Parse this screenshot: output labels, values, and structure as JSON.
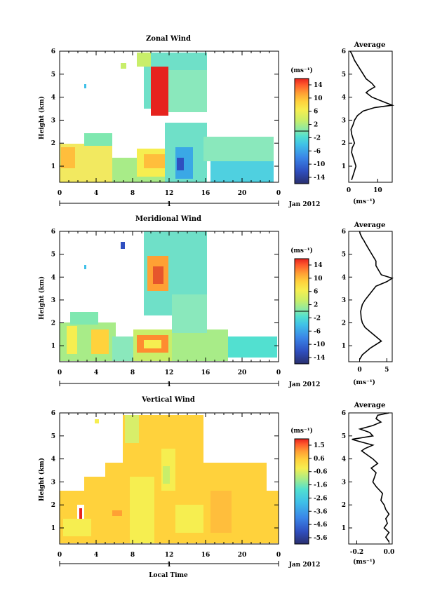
{
  "chart_data": [
    {
      "type": "heatmap",
      "title": "Zonal Wind",
      "ylabel": "Height (km)",
      "xlabel": "",
      "x_ticks": [
        "0",
        "4",
        "8",
        "12",
        "16",
        "20",
        "0"
      ],
      "y_ticks": [
        "1",
        "2",
        "3",
        "4",
        "5",
        "6"
      ],
      "xlim": [
        0,
        24
      ],
      "ylim": [
        0.3,
        6
      ],
      "date_label": "Jan 2012",
      "day_label": "1",
      "colorbar": {
        "unit": "(ms⁻¹)",
        "ticks": [
          "14",
          "10",
          "6",
          "2",
          "-2",
          "-6",
          "-10",
          "-14"
        ],
        "range": [
          -16,
          16
        ]
      },
      "profile": {
        "title": "Average",
        "xlabel": "(ms⁻¹)",
        "x_ticks": [
          "0",
          "10"
        ],
        "xlim": [
          0,
          15
        ],
        "x": [
          1,
          1.5,
          2,
          2.5,
          2,
          1.5,
          1,
          1.2,
          2,
          1.5,
          1,
          0.8,
          1.5,
          2,
          3,
          5,
          9,
          15,
          12,
          8,
          6,
          7,
          9,
          8,
          6,
          5,
          4,
          3,
          2,
          1.5,
          1,
          0.5
        ],
        "y": [
          0.4,
          0.6,
          0.8,
          1,
          1.2,
          1.4,
          1.6,
          1.8,
          2,
          2.2,
          2.4,
          2.6,
          2.8,
          3,
          3.2,
          3.4,
          3.55,
          3.65,
          3.8,
          4,
          4.2,
          4.3,
          4.45,
          4.6,
          4.8,
          5,
          5.2,
          5.4,
          5.6,
          5.75,
          5.9,
          6
        ]
      }
    },
    {
      "type": "heatmap",
      "title": "Meridional Wind",
      "ylabel": "Height (km)",
      "xlabel": "",
      "x_ticks": [
        "0",
        "4",
        "8",
        "12",
        "16",
        "20",
        "0"
      ],
      "y_ticks": [
        "1",
        "2",
        "3",
        "4",
        "5",
        "6"
      ],
      "xlim": [
        0,
        24
      ],
      "ylim": [
        0.3,
        6
      ],
      "date_label": "Jan 2012",
      "day_label": "1",
      "colorbar": {
        "unit": "(ms⁻¹)",
        "ticks": [
          "14",
          "10",
          "6",
          "2",
          "-2",
          "-6",
          "-10",
          "-14"
        ],
        "range": [
          -16,
          16
        ]
      },
      "profile": {
        "title": "Average",
        "xlabel": "(ms⁻¹)",
        "x_ticks": [
          "0",
          "5"
        ],
        "xlim": [
          -2,
          6
        ],
        "x": [
          0,
          0.5,
          2,
          4,
          3,
          2,
          1,
          0.5,
          0.3,
          0.2,
          0.5,
          1,
          2,
          3,
          5,
          6,
          4,
          3.5,
          3,
          3,
          2.5,
          2,
          1.5,
          1,
          0.8,
          0.5,
          0.3,
          0.1,
          0
        ],
        "y": [
          0.4,
          0.6,
          0.9,
          1.2,
          1.4,
          1.6,
          1.8,
          2,
          2.2,
          2.5,
          2.8,
          3,
          3.3,
          3.6,
          3.8,
          3.95,
          4.1,
          4.3,
          4.5,
          4.7,
          4.9,
          5.1,
          5.3,
          5.5,
          5.6,
          5.7,
          5.8,
          5.9,
          6
        ]
      }
    },
    {
      "type": "heatmap",
      "title": "Vertical Wind",
      "ylabel": "Height (km)",
      "xlabel": "Local Time",
      "x_ticks": [
        "0",
        "4",
        "8",
        "12",
        "16",
        "20",
        "0"
      ],
      "y_ticks": [
        "1",
        "2",
        "3",
        "4",
        "5",
        "6"
      ],
      "xlim": [
        0,
        24
      ],
      "ylim": [
        0.3,
        6
      ],
      "date_label": "Jan 2012",
      "day_label": "1",
      "colorbar": {
        "unit": "(ms⁻¹)",
        "ticks": [
          "1.5",
          "0.6",
          "-0.6",
          "-1.6",
          "-2.6",
          "-3.6",
          "-4.6",
          "-5.6"
        ],
        "range": [
          -6.1,
          2.0
        ]
      },
      "profile": {
        "title": "Average",
        "xlabel": "(ms⁻¹)",
        "x_ticks": [
          "-0.2",
          "0.0"
        ],
        "xlim": [
          -0.25,
          0.02
        ],
        "x": [
          0,
          -0.02,
          0,
          -0.03,
          -0.01,
          -0.02,
          0,
          -0.02,
          -0.03,
          -0.05,
          -0.04,
          -0.08,
          -0.1,
          -0.09,
          -0.08,
          -0.11,
          -0.07,
          -0.1,
          -0.14,
          -0.17,
          -0.15,
          -0.1,
          -0.18,
          -0.23,
          -0.1,
          -0.12,
          -0.18,
          -0.1,
          -0.05,
          -0.08,
          -0.07,
          0
        ],
        "y": [
          0.4,
          0.6,
          0.8,
          1,
          1.2,
          1.4,
          1.6,
          1.8,
          2,
          2.2,
          2.5,
          2.8,
          3,
          3.2,
          3.4,
          3.6,
          3.8,
          4,
          4.2,
          4.35,
          4.45,
          4.6,
          4.75,
          4.85,
          5,
          5.15,
          5.3,
          5.45,
          5.6,
          5.75,
          5.9,
          6
        ]
      }
    }
  ]
}
